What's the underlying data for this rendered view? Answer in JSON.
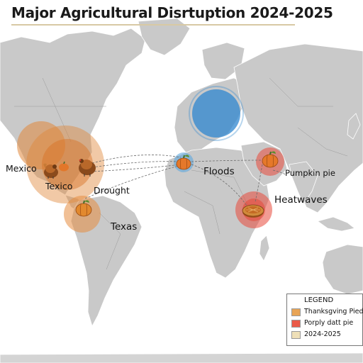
{
  "title": "Major Agricultural Disrtuption 2024-2025",
  "labels": {
    "mexico": "Mexico",
    "texico": "Texico",
    "drought": "Drought",
    "texas": "Texas",
    "floods": "Floods",
    "pumpkin_pie": "Pumpkin pie",
    "heatwaves": "Heatwaves"
  },
  "legend": {
    "title": "LEGEND",
    "items": [
      {
        "label": "Thanksgving Pied",
        "color": "#e8a456"
      },
      {
        "label": "Porply datt pie",
        "color": "#ea5a48"
      },
      {
        "label": "2024-2025",
        "color": "#efe0b8"
      }
    ]
  },
  "icons": [
    "turkey-icon",
    "pumpkin-icon",
    "pie-icon"
  ],
  "colors": {
    "land": "#c9c9c9",
    "ocean": "#ffffff",
    "orange_zone": "#e0873a",
    "blue_zone": "#2e86cf",
    "red_zone": "#e8483a",
    "route": "#6b6b6b"
  }
}
